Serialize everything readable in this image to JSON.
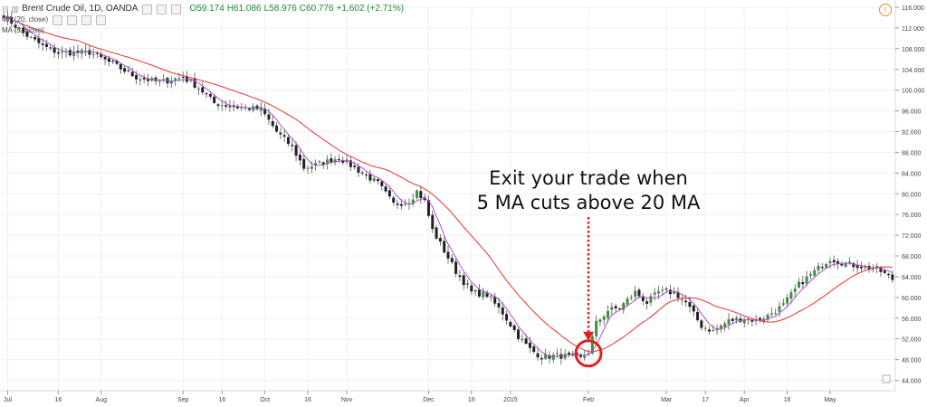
{
  "header": {
    "symbol": "Brent Crude Oil, 1D, OANDA",
    "o": "O59.174",
    "h": "H61.086",
    "l": "L58.976",
    "c": "C60.776",
    "change": "+1.602 (+2.71%)",
    "ma_slow_label": "MA (20, close)",
    "ma_fast_label": "MA (5, close)"
  },
  "annotation": {
    "line1": "Exit your trade when",
    "line2": "5 MA cuts above 20 MA"
  },
  "colors": {
    "up": "#3f8f3f",
    "down": "#222222",
    "ma20": "#e8322e",
    "ma5": "#b04fd0",
    "marker": "#e02020",
    "grid": "#eef0f3"
  },
  "chart_data": {
    "type": "candlestick",
    "title": "Brent Crude Oil, 1D, OANDA",
    "ylim": [
      42,
      116
    ],
    "y_ticks": [
      "116.000",
      "112.000",
      "108.000",
      "104.000",
      "100.000",
      "96.000",
      "92.000",
      "88.000",
      "84.000",
      "80.000",
      "76.000",
      "72.000",
      "68.000",
      "64.000",
      "60.000",
      "56.000",
      "52.000",
      "48.000",
      "44.000"
    ],
    "x_ticks": [
      "Jul",
      "16",
      "Aug",
      "Sep",
      "16",
      "Oct",
      "16",
      "Nov",
      "Dec",
      "16",
      "2015",
      "Feb",
      "Mar",
      "17",
      "Apr",
      "16",
      "May"
    ],
    "x_tick_index": [
      1,
      14,
      25,
      46,
      56,
      67,
      78,
      88,
      109,
      120,
      130,
      150,
      170,
      180,
      190,
      201,
      212
    ],
    "bar_count": 229,
    "price_anchors": [
      [
        0,
        114.5
      ],
      [
        5,
        111
      ],
      [
        10,
        108.5
      ],
      [
        14,
        107.2
      ],
      [
        22,
        107.3
      ],
      [
        28,
        105
      ],
      [
        34,
        102.5
      ],
      [
        40,
        101.5
      ],
      [
        46,
        102.5
      ],
      [
        50,
        100.5
      ],
      [
        54,
        97.5
      ],
      [
        60,
        96.7
      ],
      [
        66,
        96.3
      ],
      [
        70,
        92
      ],
      [
        74,
        89
      ],
      [
        77,
        85
      ],
      [
        82,
        86
      ],
      [
        86,
        87
      ],
      [
        91,
        84.5
      ],
      [
        96,
        82
      ],
      [
        100,
        78
      ],
      [
        104,
        78.5
      ],
      [
        106,
        80.5
      ],
      [
        108,
        78.5
      ],
      [
        110,
        73
      ],
      [
        113,
        69
      ],
      [
        116,
        65
      ],
      [
        120,
        61
      ],
      [
        124,
        60.5
      ],
      [
        128,
        57
      ],
      [
        132,
        52.5
      ],
      [
        135,
        50
      ],
      [
        138,
        48.5
      ],
      [
        142,
        48.8
      ],
      [
        146,
        48.5
      ],
      [
        148,
        48.2
      ],
      [
        150,
        49.5
      ],
      [
        152,
        55
      ],
      [
        155,
        57.5
      ],
      [
        158,
        58
      ],
      [
        162,
        61
      ],
      [
        165,
        59
      ],
      [
        168,
        61
      ],
      [
        172,
        61
      ],
      [
        175,
        59
      ],
      [
        179,
        54.5
      ],
      [
        182,
        53.5
      ],
      [
        186,
        55.5
      ],
      [
        190,
        56
      ],
      [
        193,
        55.5
      ],
      [
        196,
        56.5
      ],
      [
        200,
        58.5
      ],
      [
        204,
        62.5
      ],
      [
        208,
        65
      ],
      [
        212,
        67.5
      ],
      [
        216,
        66.5
      ],
      [
        220,
        66
      ],
      [
        224,
        65.5
      ],
      [
        228,
        63.5
      ]
    ],
    "series": [
      {
        "name": "MA (20, close)",
        "color": "#e8322e"
      },
      {
        "name": "MA (5, close)",
        "color": "#b04fd0"
      }
    ],
    "marker_bar": 150,
    "arrow_bar": 150
  }
}
